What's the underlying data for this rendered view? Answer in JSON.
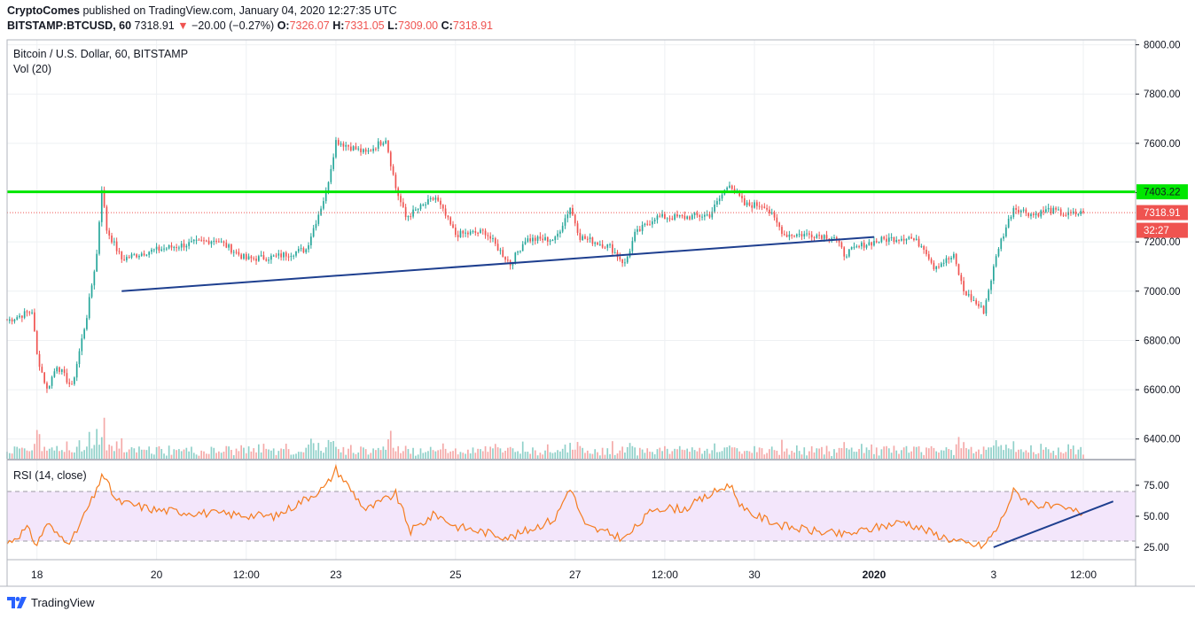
{
  "header": {
    "publisher": "CryptoComes",
    "published_text": "published on TradingView.com, January 04, 2020 12:27:35 UTC",
    "symbol": "BITSTAMP:BTCUSD, 60",
    "last": "7318.91",
    "change_arrow": "▼",
    "change": "−20.00 (−0.27%)",
    "o_label": "O:",
    "o_value": "7326.07",
    "h_label": "H:",
    "h_value": "7331.05",
    "l_label": "L:",
    "l_value": "7309.00",
    "c_label": "C:",
    "c_value": "7318.91"
  },
  "legend": {
    "series_title": "Bitcoin / U.S. Dollar, 60, BITSTAMP",
    "volume_title": "Vol (20)",
    "rsi_title": "RSI (14, close)"
  },
  "price_axis_labels": [
    "8000.00",
    "7800.00",
    "7600.00",
    "7400.00",
    "7200.00",
    "7000.00",
    "6800.00",
    "6600.00",
    "6400.00"
  ],
  "rsi_axis_labels": [
    "75.00",
    "50.00",
    "25.00"
  ],
  "time_axis_labels": [
    "18",
    "20",
    "12:00",
    "23",
    "25",
    "27",
    "12:00",
    "30",
    "2020",
    "3",
    "12:00"
  ],
  "price_tags": {
    "horizontal_line": "7403.22",
    "last_price": "7318.91",
    "countdown": "32:27"
  },
  "footer": {
    "brand": "TradingView"
  },
  "colors": {
    "up": "#26a69a",
    "down": "#ef5350",
    "support_line": "#00e600",
    "trendline": "#1e3f8f",
    "rsi_line": "#f57c1f",
    "rsi_band": "#f3e6fb",
    "vol_up": "#8fd0c9",
    "vol_down": "#f4a9a8",
    "grid": "#eef0f3"
  },
  "chart_data": [
    {
      "type": "candlestick",
      "title": "Bitcoin / U.S. Dollar, 60, BITSTAMP",
      "timeframe": "60",
      "y_range": [
        6320,
        8020
      ],
      "x_labels": [
        "18",
        "20",
        "12:00",
        "23",
        "25",
        "27",
        "12:00",
        "30",
        "2020",
        "3",
        "12:00"
      ],
      "close_path": [
        [
          "Dec 17 12:00",
          6880
        ],
        [
          "Dec 17 22:00",
          6920
        ],
        [
          "Dec 18 00:00",
          6740
        ],
        [
          "Dec 18 04:00",
          6600
        ],
        [
          "Dec 18 08:00",
          6700
        ],
        [
          "Dec 18 14:00",
          6610
        ],
        [
          "Dec 18 20:00",
          6900
        ],
        [
          "Dec 19 00:00",
          7150
        ],
        [
          "Dec 19 02:00",
          7420
        ],
        [
          "Dec 19 04:00",
          7250
        ],
        [
          "Dec 19 10:00",
          7130
        ],
        [
          "Dec 19 20:00",
          7160
        ],
        [
          "Dec 20 12:00",
          7190
        ],
        [
          "Dec 21 00:00",
          7210
        ],
        [
          "Dec 21 12:00",
          7130
        ],
        [
          "Dec 22 00:00",
          7140
        ],
        [
          "Dec 22 12:00",
          7170
        ],
        [
          "Dec 22 20:00",
          7400
        ],
        [
          "Dec 23 00:00",
          7610
        ],
        [
          "Dec 23 12:00",
          7560
        ],
        [
          "Dec 23 20:00",
          7620
        ],
        [
          "Dec 24 00:00",
          7420
        ],
        [
          "Dec 24 04:00",
          7300
        ],
        [
          "Dec 24 16:00",
          7380
        ],
        [
          "Dec 25 00:00",
          7230
        ],
        [
          "Dec 25 12:00",
          7240
        ],
        [
          "Dec 25 22:00",
          7110
        ],
        [
          "Dec 26 04:00",
          7210
        ],
        [
          "Dec 26 16:00",
          7210
        ],
        [
          "Dec 26 22:00",
          7340
        ],
        [
          "Dec 27 02:00",
          7220
        ],
        [
          "Dec 27 14:00",
          7180
        ],
        [
          "Dec 27 20:00",
          7110
        ],
        [
          "Dec 28 00:00",
          7230
        ],
        [
          "Dec 28 08:00",
          7300
        ],
        [
          "Dec 28 20:00",
          7300
        ],
        [
          "Dec 29 06:00",
          7310
        ],
        [
          "Dec 29 14:00",
          7440
        ],
        [
          "Dec 29 20:00",
          7350
        ],
        [
          "Dec 30 04:00",
          7350
        ],
        [
          "Dec 30 12:00",
          7230
        ],
        [
          "Dec 31 00:00",
          7230
        ],
        [
          "Dec 31 08:00",
          7220
        ],
        [
          "Dec 31 12:00",
          7150
        ],
        [
          "Dec 31 20:00",
          7190
        ],
        [
          "Jan 01 04:00",
          7210
        ],
        [
          "Jan 01 14:00",
          7220
        ],
        [
          "Jan 01 20:00",
          7180
        ],
        [
          "Jan 02 00:00",
          7100
        ],
        [
          "Jan 02 08:00",
          7140
        ],
        [
          "Jan 02 12:00",
          7000
        ],
        [
          "Jan 02 20:00",
          6920
        ],
        [
          "Jan 03 02:00",
          7180
        ],
        [
          "Jan 03 08:00",
          7340
        ],
        [
          "Jan 03 16:00",
          7310
        ],
        [
          "Jan 03 22:00",
          7330
        ],
        [
          "Jan 04 06:00",
          7310
        ],
        [
          "Jan 04 12:00",
          7318.91
        ]
      ],
      "horizontal_line": 7403.22,
      "last_price": 7318.91,
      "trendline": [
        [
          "Dec 19 10:00",
          7000
        ],
        [
          "Jan 01 00:00",
          7220
        ]
      ]
    },
    {
      "type": "bar",
      "title": "Vol (20)",
      "note": "hourly volume histogram, unlabeled scale"
    },
    {
      "type": "line",
      "title": "RSI (14, close)",
      "y_range": [
        15,
        95
      ],
      "bands": [
        30,
        70
      ],
      "y_ticks": [
        75,
        50,
        25
      ],
      "series_path": [
        [
          "Dec 17 12:00",
          28
        ],
        [
          "Dec 17 20:00",
          40
        ],
        [
          "Dec 18 00:00",
          27
        ],
        [
          "Dec 18 04:00",
          45
        ],
        [
          "Dec 18 08:00",
          35
        ],
        [
          "Dec 18 14:00",
          30
        ],
        [
          "Dec 18 20:00",
          55
        ],
        [
          "Dec 19 00:00",
          70
        ],
        [
          "Dec 19 02:00",
          85
        ],
        [
          "Dec 19 08:00",
          62
        ],
        [
          "Dec 20 00:00",
          55
        ],
        [
          "Dec 21 00:00",
          52
        ],
        [
          "Dec 22 00:00",
          50
        ],
        [
          "Dec 22 20:00",
          74
        ],
        [
          "Dec 23 00:00",
          88
        ],
        [
          "Dec 23 12:00",
          55
        ],
        [
          "Dec 24 00:00",
          68
        ],
        [
          "Dec 24 06:00",
          38
        ],
        [
          "Dec 24 16:00",
          52
        ],
        [
          "Dec 25 00:00",
          42
        ],
        [
          "Dec 25 22:00",
          33
        ],
        [
          "Dec 26 16:00",
          48
        ],
        [
          "Dec 26 22:00",
          74
        ],
        [
          "Dec 27 04:00",
          42
        ],
        [
          "Dec 27 20:00",
          32
        ],
        [
          "Dec 28 08:00",
          57
        ],
        [
          "Dec 28 20:00",
          56
        ],
        [
          "Dec 29 14:00",
          76
        ],
        [
          "Dec 29 20:00",
          54
        ],
        [
          "Dec 30 12:00",
          42
        ],
        [
          "Dec 31 00:00",
          38
        ],
        [
          "Dec 31 12:00",
          35
        ],
        [
          "Jan 01 12:00",
          46
        ],
        [
          "Jan 02 00:00",
          36
        ],
        [
          "Jan 02 12:00",
          28
        ],
        [
          "Jan 02 20:00",
          26
        ],
        [
          "Jan 03 02:00",
          42
        ],
        [
          "Jan 03 08:00",
          70
        ],
        [
          "Jan 03 16:00",
          60
        ],
        [
          "Jan 04 00:00",
          57
        ],
        [
          "Jan 04 12:00",
          53
        ]
      ],
      "trendline": [
        [
          "Jan 03 00:00",
          25
        ],
        [
          "Jan 05 00:00",
          62
        ]
      ]
    }
  ]
}
